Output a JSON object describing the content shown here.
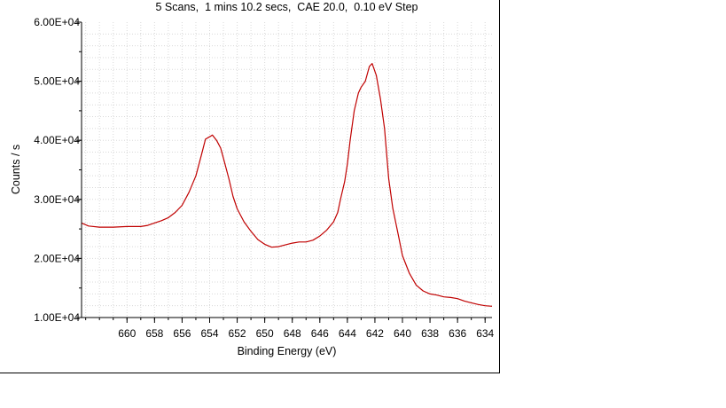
{
  "chart_data": {
    "type": "line",
    "title": "5 Scans,  1 mins 10.2 secs,  CAE 20.0,  0.10 eV Step",
    "xlabel": "Binding Energy (eV)",
    "ylabel": "Counts / s",
    "xlim": [
      663.3,
      633.5
    ],
    "ylim": [
      10000,
      60000
    ],
    "x_reversed": true,
    "grid": true,
    "x_ticks": [
      {
        "value": 660,
        "label": "660"
      },
      {
        "value": 658,
        "label": "658"
      },
      {
        "value": 656,
        "label": "656"
      },
      {
        "value": 654,
        "label": "654"
      },
      {
        "value": 652,
        "label": "652"
      },
      {
        "value": 650,
        "label": "650"
      },
      {
        "value": 648,
        "label": "648"
      },
      {
        "value": 646,
        "label": "646"
      },
      {
        "value": 644,
        "label": "644"
      },
      {
        "value": 642,
        "label": "642"
      },
      {
        "value": 640,
        "label": "640"
      },
      {
        "value": 638,
        "label": "638"
      },
      {
        "value": 636,
        "label": "636"
      },
      {
        "value": 634,
        "label": "634"
      }
    ],
    "y_ticks": [
      {
        "value": 10000,
        "label": "1.00E+04"
      },
      {
        "value": 20000,
        "label": "2.00E+04"
      },
      {
        "value": 30000,
        "label": "3.00E+04"
      },
      {
        "value": 40000,
        "label": "4.00E+04"
      },
      {
        "value": 50000,
        "label": "5.00E+04"
      },
      {
        "value": 60000,
        "label": "6.00E+04"
      }
    ],
    "series": [
      {
        "color": "#c00000",
        "points": [
          [
            663.3,
            26000
          ],
          [
            662.8,
            25500
          ],
          [
            662.0,
            25300
          ],
          [
            661.0,
            25300
          ],
          [
            660.0,
            25400
          ],
          [
            659.0,
            25400
          ],
          [
            658.5,
            25600
          ],
          [
            658.0,
            26000
          ],
          [
            657.5,
            26400
          ],
          [
            657.0,
            26900
          ],
          [
            656.5,
            27800
          ],
          [
            656.0,
            29000
          ],
          [
            655.5,
            31200
          ],
          [
            655.0,
            34000
          ],
          [
            654.6,
            37500
          ],
          [
            654.3,
            40200
          ],
          [
            654.0,
            40600
          ],
          [
            653.8,
            40900
          ],
          [
            653.5,
            40000
          ],
          [
            653.2,
            38700
          ],
          [
            653.0,
            37000
          ],
          [
            652.6,
            33500
          ],
          [
            652.3,
            30500
          ],
          [
            652.0,
            28400
          ],
          [
            651.5,
            26200
          ],
          [
            651.0,
            24600
          ],
          [
            650.5,
            23200
          ],
          [
            650.0,
            22400
          ],
          [
            649.5,
            21900
          ],
          [
            649.0,
            22000
          ],
          [
            648.5,
            22300
          ],
          [
            648.0,
            22600
          ],
          [
            647.5,
            22800
          ],
          [
            647.0,
            22800
          ],
          [
            646.5,
            23100
          ],
          [
            646.0,
            23800
          ],
          [
            645.5,
            24800
          ],
          [
            645.0,
            26200
          ],
          [
            644.7,
            27800
          ],
          [
            644.5,
            30000
          ],
          [
            644.2,
            33000
          ],
          [
            644.0,
            36000
          ],
          [
            643.8,
            40000
          ],
          [
            643.5,
            45000
          ],
          [
            643.2,
            48000
          ],
          [
            643.0,
            49000
          ],
          [
            642.7,
            50000
          ],
          [
            642.4,
            52500
          ],
          [
            642.2,
            53000
          ],
          [
            641.9,
            51000
          ],
          [
            641.6,
            47000
          ],
          [
            641.3,
            42000
          ],
          [
            641.0,
            33500
          ],
          [
            640.7,
            28500
          ],
          [
            640.3,
            24000
          ],
          [
            640.0,
            20500
          ],
          [
            639.5,
            17500
          ],
          [
            639.0,
            15500
          ],
          [
            638.5,
            14500
          ],
          [
            638.0,
            14000
          ],
          [
            637.5,
            13800
          ],
          [
            637.0,
            13500
          ],
          [
            636.5,
            13400
          ],
          [
            636.0,
            13200
          ],
          [
            635.5,
            12800
          ],
          [
            635.0,
            12500
          ],
          [
            634.5,
            12200
          ],
          [
            634.0,
            12000
          ],
          [
            633.5,
            11900
          ]
        ]
      }
    ]
  }
}
